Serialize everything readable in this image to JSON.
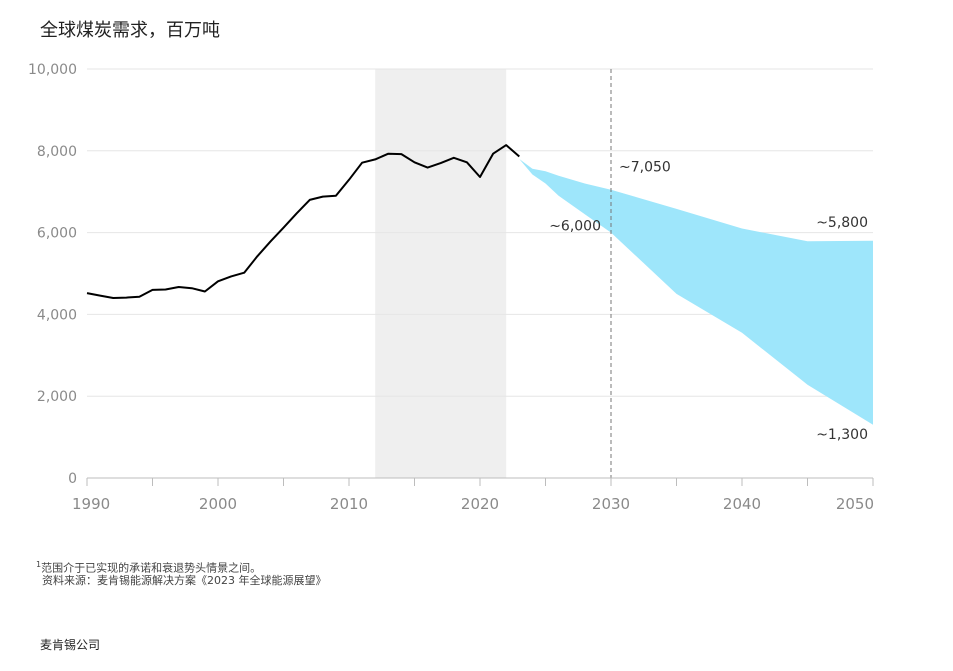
{
  "title": "全球煤炭需求，百万吨",
  "footnote": "范围介于已实现的承诺和衰退势头情景之间。",
  "footnote_mark": "1",
  "source": "资料来源：麦肯锡能源解决方案《2023 年全球能源展望》",
  "brand": "麦肯锡公司",
  "colors": {
    "history": "#000000",
    "range": "#9ee6fb",
    "shade": "#efefef",
    "grid": "#e6e6e6",
    "dashed": "#777777"
  },
  "chart_data": {
    "type": "area",
    "xlim": [
      1990,
      2050
    ],
    "ylim": [
      0,
      10000
    ],
    "xticks": [
      "1990",
      "2000",
      "2010",
      "2020",
      "2030",
      "2040",
      "2050"
    ],
    "yticks": [
      "0",
      "2,000",
      "4,000",
      "6,000",
      "8,000",
      "10,000"
    ],
    "highlight_period": [
      2012,
      2022
    ],
    "reference_year": 2030,
    "history": {
      "x": [
        1990,
        1991,
        1992,
        1993,
        1994,
        1995,
        1996,
        1997,
        1998,
        1999,
        2000,
        2001,
        2002,
        2003,
        2004,
        2005,
        2006,
        2007,
        2008,
        2009,
        2010,
        2011,
        2012,
        2013,
        2014,
        2015,
        2016,
        2017,
        2018,
        2019,
        2020,
        2021,
        2022,
        2023
      ],
      "y": [
        4520,
        4460,
        4400,
        4410,
        4430,
        4600,
        4610,
        4670,
        4640,
        4560,
        4810,
        4930,
        5020,
        5420,
        5780,
        6120,
        6470,
        6800,
        6880,
        6900,
        7290,
        7710,
        7790,
        7930,
        7920,
        7720,
        7590,
        7700,
        7830,
        7720,
        7360,
        7930,
        8140,
        7860
      ]
    },
    "range": {
      "x": [
        2023,
        2024,
        2025,
        2026,
        2028,
        2030,
        2035,
        2040,
        2045,
        2050
      ],
      "upper": [
        7800,
        7560,
        7500,
        7390,
        7200,
        7050,
        6580,
        6100,
        5790,
        5800
      ],
      "lower": [
        7800,
        7420,
        7200,
        6900,
        6450,
        6000,
        4500,
        3550,
        2280,
        1300
      ]
    },
    "annotations": [
      {
        "label": "~7,050",
        "x": 2030,
        "y": 7050
      },
      {
        "label": "~6,000",
        "x": 2030,
        "y": 6000
      },
      {
        "label": "~5,800",
        "x": 2050,
        "y": 5800
      },
      {
        "label": "~1,300",
        "x": 2050,
        "y": 1300
      }
    ]
  }
}
